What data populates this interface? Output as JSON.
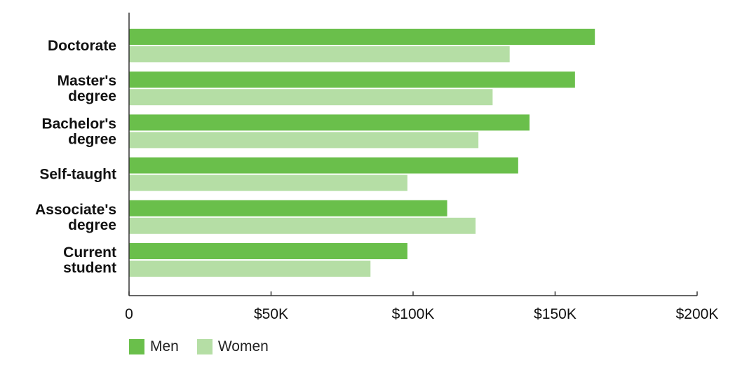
{
  "chart_data": {
    "type": "bar",
    "orientation": "horizontal",
    "categories": [
      [
        "Doctorate"
      ],
      [
        "Master's",
        "degree"
      ],
      [
        "Bachelor's",
        "degree"
      ],
      [
        "Self-taught"
      ],
      [
        "Associate's",
        "degree"
      ],
      [
        "Current",
        "student"
      ]
    ],
    "series": [
      {
        "name": "Men",
        "color": "#6abf4b",
        "values": [
          164000,
          157000,
          141000,
          137000,
          112000,
          98000
        ]
      },
      {
        "name": "Women",
        "color": "#b5dea5",
        "values": [
          134000,
          128000,
          123000,
          98000,
          122000,
          85000
        ]
      }
    ],
    "xlim": [
      0,
      200000
    ],
    "xticks": [
      0,
      50000,
      100000,
      150000,
      200000
    ],
    "xtick_labels": [
      "0",
      "$50K",
      "$100K",
      "$150K",
      "$200K"
    ],
    "title": "",
    "xlabel": "",
    "ylabel": "",
    "grid": false,
    "legend_position": "bottom-left"
  }
}
